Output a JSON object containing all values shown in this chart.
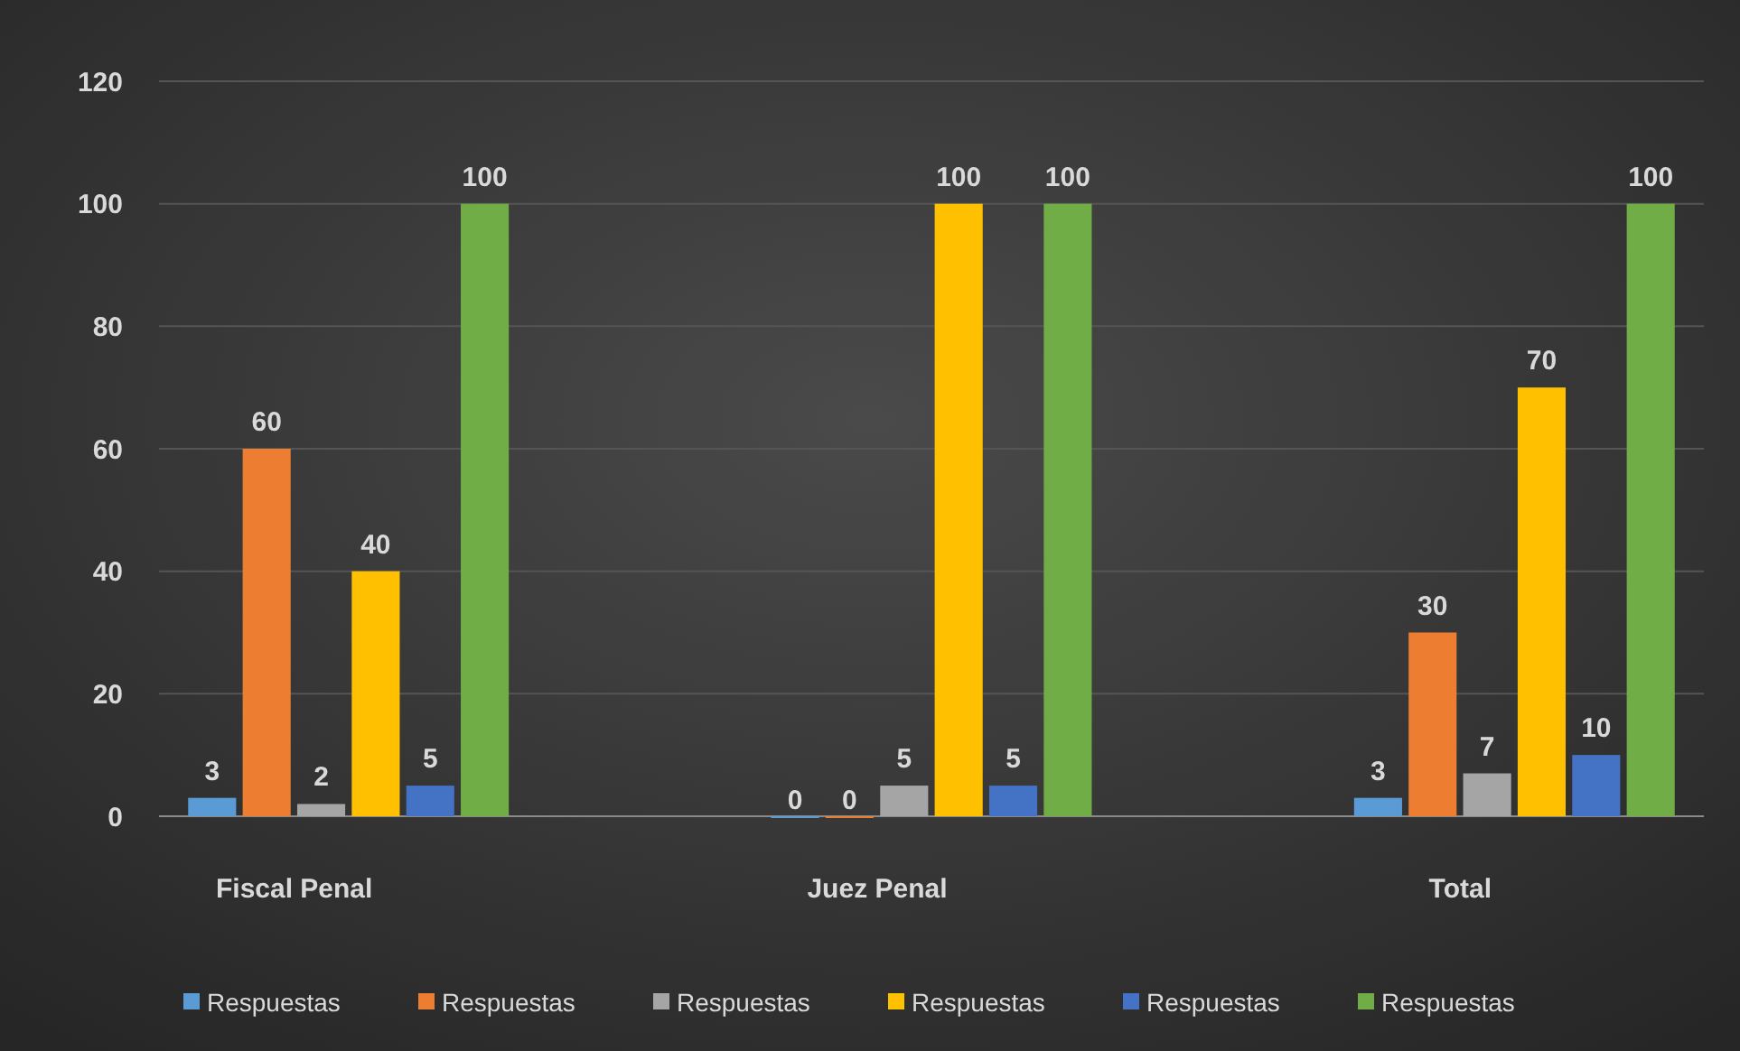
{
  "chart_data": {
    "type": "bar",
    "categories": [
      "Fiscal Penal",
      "Juez Penal",
      "Total"
    ],
    "series": [
      {
        "name": "Respuestas",
        "color": "#5b9bd5",
        "values": [
          3,
          0,
          3
        ]
      },
      {
        "name": "Respuestas",
        "color": "#ed7d31",
        "values": [
          60,
          0,
          30
        ]
      },
      {
        "name": "Respuestas",
        "color": "#a5a5a5",
        "values": [
          2,
          5,
          7
        ]
      },
      {
        "name": "Respuestas",
        "color": "#ffc000",
        "values": [
          40,
          100,
          70
        ]
      },
      {
        "name": "Respuestas",
        "color": "#4472c4",
        "values": [
          5,
          5,
          10
        ]
      },
      {
        "name": "Respuestas",
        "color": "#70ad47",
        "values": [
          100,
          100,
          100
        ]
      }
    ],
    "ylim": [
      0,
      120
    ],
    "yticks": [
      0,
      20,
      40,
      60,
      80,
      100,
      120
    ],
    "grid": "y",
    "legend": "bottom",
    "data_labels": true
  }
}
